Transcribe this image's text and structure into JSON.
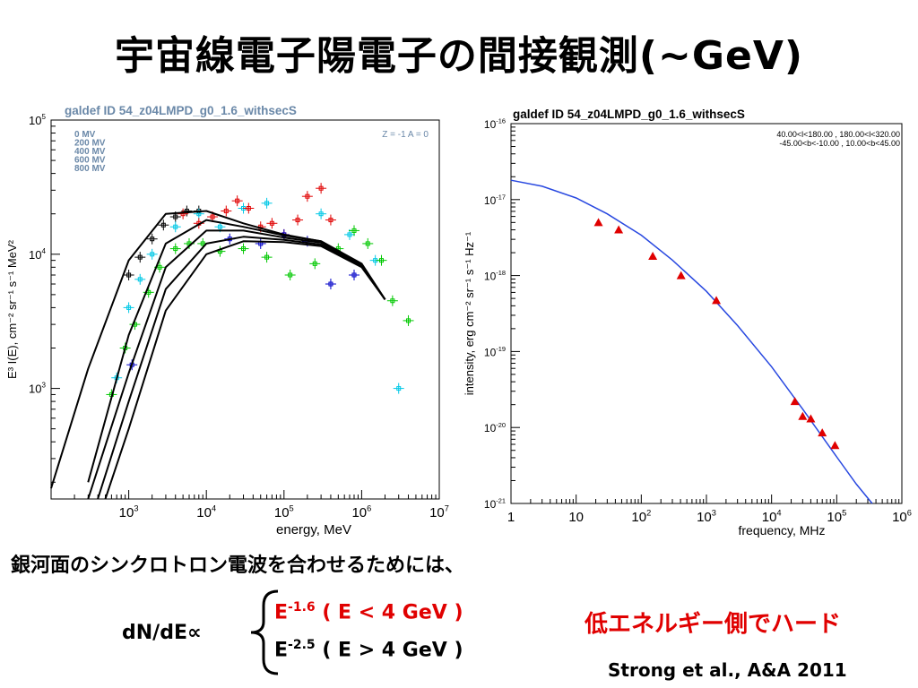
{
  "slide": {
    "title": "宇宙線電子陽電子の間接観測(~GeV)",
    "note": "銀河面のシンクロトロン電波を合わせるためには、",
    "formula_lhs": "dN/dE∝",
    "case1_exp": "-1.6",
    "case1_cond": " ( E < 4 GeV )",
    "case2_exp": "-2.5",
    "case2_cond": " ( E > 4 GeV )",
    "callout": "低エネルギー側でハード",
    "citation": "Strong et al., A&A  2011",
    "case_color_1": "#e00000",
    "case_color_2": "#000000"
  },
  "chart_data": [
    {
      "type": "line",
      "title": "galdef ID 54_z04LMPD_g0_1.6_withsecS",
      "xlabel": "energy, MeV",
      "ylabel": "E³ I(E), cm⁻² sr⁻¹ s⁻¹ MeV²",
      "xscale": "log",
      "yscale": "log",
      "xlim": [
        100,
        10000000
      ],
      "ylim": [
        150,
        100000
      ],
      "xticks": [
        {
          "base": "10",
          "exp": "3"
        },
        {
          "base": "10",
          "exp": "4"
        },
        {
          "base": "10",
          "exp": "5"
        },
        {
          "base": "10",
          "exp": "6"
        },
        {
          "base": "10",
          "exp": "7"
        }
      ],
      "yticks": [
        {
          "base": "10",
          "exp": "3"
        },
        {
          "base": "10",
          "exp": "4"
        },
        {
          "base": "10",
          "exp": "5"
        }
      ],
      "legend_title": [
        "0 MV",
        "200 MV",
        "400 MV",
        "600 MV",
        "800 MV"
      ],
      "legend_placement": "top-left",
      "annotation": "Z = -1  A = 0",
      "annotation_placement": "top-right",
      "series": [
        {
          "name": "0 MV",
          "color": "#000000",
          "x": [
            100,
            300,
            1000,
            3000,
            10000,
            30000,
            100000,
            300000,
            1000000,
            2000000
          ],
          "values": [
            180,
            1400,
            9000,
            20000,
            21000,
            17000,
            14000,
            12500,
            8500,
            4600
          ]
        },
        {
          "name": "200 MV",
          "color": "#000000",
          "x": [
            300,
            1000,
            3000,
            10000,
            30000,
            100000,
            300000,
            1000000,
            2000000
          ],
          "values": [
            200,
            2500,
            12000,
            18000,
            16000,
            13800,
            12500,
            8500,
            4600
          ]
        },
        {
          "name": "400 MV",
          "color": "#000000",
          "x": [
            300,
            1000,
            3000,
            10000,
            30000,
            100000,
            300000,
            1000000,
            2000000
          ],
          "values": [
            150,
            1300,
            8000,
            15000,
            15000,
            13300,
            12200,
            8300,
            4600
          ]
        },
        {
          "name": "600 MV",
          "color": "#000000",
          "x": [
            400,
            1000,
            3000,
            10000,
            30000,
            100000,
            300000,
            1000000,
            2000000
          ],
          "values": [
            150,
            800,
            5500,
            12000,
            13500,
            12800,
            11800,
            8200,
            4600
          ]
        },
        {
          "name": "800 MV",
          "color": "#000000",
          "x": [
            500,
            1000,
            3000,
            10000,
            30000,
            100000,
            300000,
            1000000,
            2000000
          ],
          "values": [
            150,
            500,
            3800,
            10000,
            12500,
            12300,
            11500,
            8000,
            4600
          ]
        }
      ],
      "points": [
        {
          "color": "#000000",
          "x": [
            1000,
            1400,
            2000,
            2800,
            4000,
            5600,
            8000
          ],
          "values": [
            7000,
            9500,
            13000,
            16500,
            19000,
            21000,
            21000
          ]
        },
        {
          "color": "#00c8e6",
          "x": [
            700,
            1000,
            1400,
            2000,
            4000,
            8000,
            15000,
            30000,
            60000,
            300000,
            700000,
            1500000,
            3000000
          ],
          "values": [
            1200,
            4000,
            6500,
            10000,
            16000,
            20000,
            16000,
            22000,
            24000,
            20000,
            14000,
            9000,
            1000
          ]
        },
        {
          "color": "#00c800",
          "x": [
            600,
            900,
            1200,
            1800,
            2500,
            4000,
            6000,
            9000,
            15000,
            30000,
            60000,
            120000,
            250000,
            500000,
            800000,
            1200000,
            1800000,
            2500000,
            4000000
          ],
          "values": [
            900,
            2000,
            3000,
            5200,
            8000,
            11000,
            12000,
            12000,
            10500,
            11000,
            9500,
            7000,
            8500,
            11000,
            15000,
            12000,
            9000,
            4500,
            3200
          ]
        },
        {
          "color": "#e00000",
          "x": [
            5000,
            8000,
            12000,
            18000,
            25000,
            35000,
            50000,
            70000,
            100000,
            150000,
            200000,
            300000,
            400000
          ],
          "values": [
            20000,
            17000,
            19000,
            21000,
            25000,
            22000,
            16000,
            17000,
            14000,
            18000,
            27000,
            31000,
            18000
          ]
        },
        {
          "color": "#0000c8",
          "x": [
            1100,
            20000,
            50000,
            100000,
            200000,
            400000,
            800000
          ],
          "values": [
            1500,
            13000,
            12000,
            14000,
            12500,
            6000,
            7000
          ]
        }
      ]
    },
    {
      "type": "line",
      "title": "galdef ID 54_z04LMPD_g0_1.6_withsecS",
      "xlabel": "frequency, MHz",
      "ylabel": "intensity, erg cm⁻² sr⁻¹ s⁻¹ Hz⁻¹",
      "xscale": "log",
      "yscale": "log",
      "xlim": [
        1,
        1000000
      ],
      "ylim": [
        1e-21,
        1e-16
      ],
      "xticks": [
        {
          "base": "1",
          "exp": ""
        },
        {
          "base": "10",
          "exp": ""
        },
        {
          "base": "10",
          "exp": "2"
        },
        {
          "base": "10",
          "exp": "3"
        },
        {
          "base": "10",
          "exp": "4"
        },
        {
          "base": "10",
          "exp": "5"
        },
        {
          "base": "10",
          "exp": "6"
        }
      ],
      "yticks": [
        {
          "base": "10",
          "exp": "-21"
        },
        {
          "base": "10",
          "exp": "-20"
        },
        {
          "base": "10",
          "exp": "-19"
        },
        {
          "base": "10",
          "exp": "-18"
        },
        {
          "base": "10",
          "exp": "-17"
        },
        {
          "base": "10",
          "exp": "-16"
        }
      ],
      "annotation_lines": [
        "40.00<l<180.00 , 180.00<l<320.00",
        "-45.00<b<-10.00 , 10.00<b<45.00"
      ],
      "annotation_placement": "top-right",
      "model": {
        "color": "#2848e0",
        "x": [
          1,
          3,
          10,
          30,
          100,
          300,
          1000,
          3000,
          10000,
          30000,
          100000,
          200000,
          350000
        ],
        "values": [
          1.8e-17,
          1.5e-17,
          1.05e-17,
          6.5e-18,
          3.4e-18,
          1.6e-18,
          6.2e-19,
          2.2e-19,
          6.3e-20,
          1.75e-20,
          4.1e-21,
          1.8e-21,
          1e-21
        ]
      },
      "data": {
        "color": "#e00000",
        "x": [
          22,
          45,
          150,
          408,
          1420,
          22800,
          30000,
          40000,
          60000,
          94000
        ],
        "values": [
          5e-18,
          4e-18,
          1.8e-18,
          1e-18,
          4.7e-19,
          2.2e-20,
          1.4e-20,
          1.3e-20,
          8.5e-21,
          5.8e-21
        ]
      }
    }
  ]
}
